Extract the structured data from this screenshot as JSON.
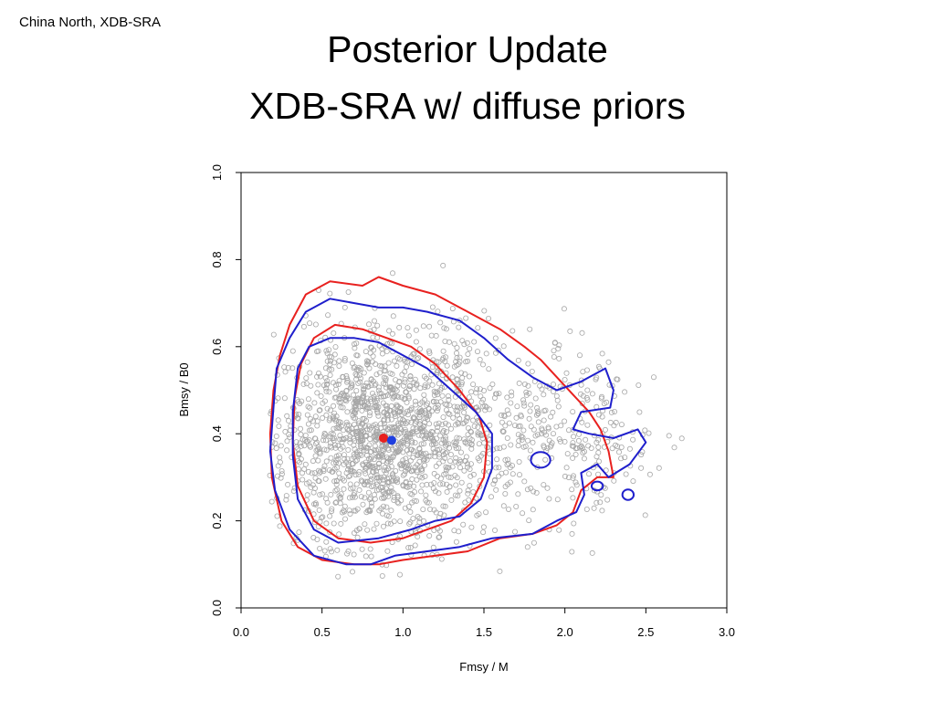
{
  "slide": {
    "corner_label": "China North, XDB-SRA",
    "title_line1": "Posterior Update",
    "title_line2": "XDB-SRA w/ diffuse priors"
  },
  "chart_data": {
    "type": "scatter",
    "title": "",
    "xlabel": "Fmsy / M",
    "ylabel": "Bmsy / B0",
    "xlim": [
      0.0,
      3.0
    ],
    "ylim": [
      0.0,
      1.0
    ],
    "xticks": [
      "0.0",
      "0.5",
      "1.0",
      "1.5",
      "2.0",
      "2.5",
      "3.0"
    ],
    "yticks": [
      "0.0",
      "0.2",
      "0.4",
      "0.6",
      "0.8",
      "1.0"
    ],
    "grid": false,
    "legend": "none",
    "colors": {
      "points": "#a6a6a6",
      "contour_red": "#e8211f",
      "contour_blue": "#1f1fcc",
      "point_red": "#e8211f",
      "point_blue": "#1f3fe0"
    },
    "point_cloud": {
      "description_free_sample": true,
      "n_points": 1900,
      "center": [
        0.85,
        0.39
      ],
      "x_range": [
        0.17,
        2.97
      ],
      "y_range": [
        0.07,
        0.82
      ]
    },
    "summary_points": [
      {
        "color": "red",
        "x": 0.88,
        "y": 0.39
      },
      {
        "color": "blue",
        "x": 0.93,
        "y": 0.385
      }
    ],
    "contours": {
      "red_outer": [
        [
          0.7,
          0.1
        ],
        [
          0.5,
          0.11
        ],
        [
          0.35,
          0.14
        ],
        [
          0.25,
          0.2
        ],
        [
          0.19,
          0.3
        ],
        [
          0.18,
          0.4
        ],
        [
          0.2,
          0.5
        ],
        [
          0.24,
          0.58
        ],
        [
          0.3,
          0.65
        ],
        [
          0.4,
          0.72
        ],
        [
          0.55,
          0.75
        ],
        [
          0.75,
          0.74
        ],
        [
          0.85,
          0.76
        ],
        [
          1.0,
          0.74
        ],
        [
          1.2,
          0.72
        ],
        [
          1.4,
          0.68
        ],
        [
          1.6,
          0.64
        ],
        [
          1.75,
          0.6
        ],
        [
          1.85,
          0.57
        ],
        [
          1.95,
          0.53
        ],
        [
          2.05,
          0.49
        ],
        [
          2.15,
          0.45
        ],
        [
          2.22,
          0.41
        ],
        [
          2.27,
          0.36
        ],
        [
          2.3,
          0.3
        ],
        [
          2.2,
          0.3
        ],
        [
          2.1,
          0.27
        ],
        [
          2.05,
          0.22
        ],
        [
          1.95,
          0.19
        ],
        [
          1.8,
          0.17
        ],
        [
          1.6,
          0.16
        ],
        [
          1.4,
          0.13
        ],
        [
          1.2,
          0.12
        ],
        [
          1.0,
          0.11
        ],
        [
          0.85,
          0.1
        ]
      ],
      "red_inner": [
        [
          0.6,
          0.16
        ],
        [
          0.45,
          0.2
        ],
        [
          0.35,
          0.28
        ],
        [
          0.32,
          0.38
        ],
        [
          0.33,
          0.48
        ],
        [
          0.37,
          0.56
        ],
        [
          0.45,
          0.62
        ],
        [
          0.58,
          0.65
        ],
        [
          0.75,
          0.64
        ],
        [
          0.9,
          0.62
        ],
        [
          1.05,
          0.6
        ],
        [
          1.2,
          0.56
        ],
        [
          1.35,
          0.5
        ],
        [
          1.47,
          0.44
        ],
        [
          1.52,
          0.38
        ],
        [
          1.5,
          0.3
        ],
        [
          1.42,
          0.24
        ],
        [
          1.3,
          0.2
        ],
        [
          1.15,
          0.18
        ],
        [
          1.0,
          0.16
        ],
        [
          0.8,
          0.15
        ]
      ],
      "blue_outer": [
        [
          0.65,
          0.1
        ],
        [
          0.45,
          0.12
        ],
        [
          0.3,
          0.18
        ],
        [
          0.21,
          0.27
        ],
        [
          0.18,
          0.36
        ],
        [
          0.2,
          0.46
        ],
        [
          0.22,
          0.55
        ],
        [
          0.3,
          0.62
        ],
        [
          0.4,
          0.68
        ],
        [
          0.55,
          0.71
        ],
        [
          0.7,
          0.7
        ],
        [
          0.85,
          0.69
        ],
        [
          1.0,
          0.69
        ],
        [
          1.15,
          0.68
        ],
        [
          1.35,
          0.66
        ],
        [
          1.5,
          0.62
        ],
        [
          1.65,
          0.57
        ],
        [
          1.8,
          0.53
        ],
        [
          1.95,
          0.5
        ],
        [
          2.1,
          0.52
        ],
        [
          2.25,
          0.55
        ],
        [
          2.3,
          0.5
        ],
        [
          2.28,
          0.46
        ],
        [
          2.1,
          0.45
        ],
        [
          2.05,
          0.41
        ],
        [
          2.15,
          0.4
        ],
        [
          2.3,
          0.39
        ],
        [
          2.45,
          0.41
        ],
        [
          2.5,
          0.38
        ],
        [
          2.4,
          0.33
        ],
        [
          2.27,
          0.3
        ],
        [
          2.2,
          0.33
        ],
        [
          2.1,
          0.31
        ],
        [
          2.12,
          0.26
        ],
        [
          2.07,
          0.22
        ],
        [
          1.95,
          0.2
        ],
        [
          1.8,
          0.17
        ],
        [
          1.55,
          0.16
        ],
        [
          1.35,
          0.14
        ],
        [
          1.15,
          0.13
        ],
        [
          0.95,
          0.12
        ],
        [
          0.8,
          0.1
        ]
      ],
      "blue_inner": [
        [
          0.6,
          0.15
        ],
        [
          0.45,
          0.18
        ],
        [
          0.35,
          0.25
        ],
        [
          0.32,
          0.35
        ],
        [
          0.32,
          0.45
        ],
        [
          0.35,
          0.55
        ],
        [
          0.42,
          0.6
        ],
        [
          0.55,
          0.62
        ],
        [
          0.7,
          0.62
        ],
        [
          0.85,
          0.61
        ],
        [
          1.0,
          0.58
        ],
        [
          1.15,
          0.55
        ],
        [
          1.3,
          0.5
        ],
        [
          1.45,
          0.45
        ],
        [
          1.55,
          0.4
        ],
        [
          1.55,
          0.32
        ],
        [
          1.48,
          0.25
        ],
        [
          1.35,
          0.21
        ],
        [
          1.2,
          0.2
        ],
        [
          1.05,
          0.18
        ],
        [
          0.85,
          0.16
        ]
      ],
      "blue_islands": [
        {
          "cx": 1.85,
          "cy": 0.34,
          "rx": 0.06,
          "ry": 0.018
        },
        {
          "cx": 2.2,
          "cy": 0.28,
          "rx": 0.035,
          "ry": 0.01
        },
        {
          "cx": 2.39,
          "cy": 0.26,
          "rx": 0.035,
          "ry": 0.012
        }
      ]
    }
  }
}
